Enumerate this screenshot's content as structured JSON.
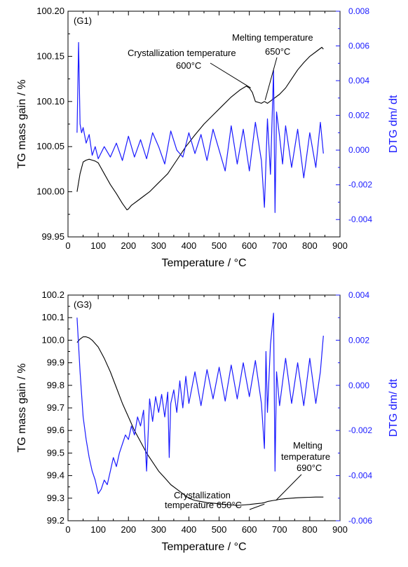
{
  "chart_data": [
    {
      "type": "line",
      "panel_label": "(G1)",
      "xlabel": "Temperature / °C",
      "ylabel_left": "TG mass gain / %",
      "ylabel_right": "DTG dm/ dt",
      "xlim": [
        0,
        900
      ],
      "ylim_left": [
        99.95,
        100.2
      ],
      "ylim_right": [
        -0.005,
        0.008
      ],
      "x_ticks": [
        0,
        100,
        200,
        300,
        400,
        500,
        600,
        700,
        800,
        900
      ],
      "y_left_ticks": [
        99.95,
        100.0,
        100.05,
        100.1,
        100.15,
        100.2
      ],
      "y_left_tick_labels": [
        "99.95",
        "100.00",
        "100.05",
        "100.10",
        "100.15",
        "100.20"
      ],
      "y_right_ticks": [
        -0.004,
        -0.002,
        0.0,
        0.002,
        0.004,
        0.006,
        0.008
      ],
      "y_right_tick_labels": [
        "-0.004",
        "-0.002",
        "0.000",
        "0.002",
        "0.004",
        "0.006",
        "0.008"
      ],
      "colors": {
        "tg": "#000000",
        "dtg": "#1a1aff"
      },
      "annotations": [
        {
          "text_lines": [
            "Crystallization temperature",
            "600°C"
          ],
          "x": 600,
          "y": 100.115
        },
        {
          "text_lines": [
            "Melting temperature",
            "650°C"
          ],
          "x": 650,
          "y": 100.1
        }
      ],
      "series": [
        {
          "name": "TG",
          "axis": "left",
          "x": [
            30,
            40,
            50,
            60,
            70,
            80,
            90,
            100,
            120,
            140,
            160,
            180,
            195,
            200,
            210,
            230,
            250,
            270,
            300,
            330,
            360,
            390,
            420,
            450,
            480,
            510,
            540,
            570,
            590,
            600,
            610,
            620,
            640,
            650,
            660,
            680,
            700,
            720,
            740,
            760,
            780,
            800,
            820,
            840,
            845
          ],
          "y": [
            100.0,
            100.02,
            100.033,
            100.035,
            100.036,
            100.035,
            100.034,
            100.032,
            100.02,
            100.008,
            99.998,
            99.987,
            99.98,
            99.981,
            99.985,
            99.99,
            99.995,
            100.0,
            100.01,
            100.02,
            100.035,
            100.05,
            100.063,
            100.075,
            100.085,
            100.095,
            100.105,
            100.113,
            100.117,
            100.115,
            100.11,
            100.1,
            100.098,
            100.1,
            100.098,
            100.103,
            100.108,
            100.115,
            100.125,
            100.135,
            100.143,
            100.15,
            100.155,
            100.16,
            100.158
          ]
        },
        {
          "name": "DTG",
          "axis": "right",
          "x": [
            30,
            35,
            40,
            45,
            50,
            60,
            70,
            80,
            90,
            100,
            120,
            140,
            160,
            180,
            200,
            220,
            240,
            260,
            280,
            300,
            320,
            340,
            360,
            380,
            400,
            420,
            440,
            460,
            480,
            500,
            520,
            540,
            560,
            580,
            600,
            620,
            640,
            650,
            660,
            670,
            680,
            685,
            690,
            700,
            710,
            720,
            740,
            760,
            780,
            800,
            820,
            835,
            845
          ],
          "y": [
            0.001,
            0.0062,
            0.0015,
            0.001,
            0.0013,
            0.0004,
            0.0009,
            -0.0003,
            0.0002,
            -0.0005,
            0.0002,
            -0.0004,
            0.0004,
            -0.0006,
            0.0008,
            -0.0004,
            0.0006,
            -0.0005,
            0.001,
            0.0002,
            -0.0008,
            0.0011,
            0.0,
            -0.0004,
            0.001,
            -0.0002,
            0.0009,
            -0.0006,
            0.0012,
            0.0,
            -0.0012,
            0.0014,
            -0.0008,
            0.0012,
            -0.0012,
            0.0016,
            -0.0006,
            -0.0033,
            0.0018,
            -0.0014,
            0.0046,
            -0.0036,
            0.0022,
            0.0008,
            -0.0008,
            0.0014,
            -0.001,
            0.0012,
            -0.0016,
            0.001,
            -0.001,
            0.0016,
            -0.0002
          ]
        }
      ]
    },
    {
      "type": "line",
      "panel_label": "(G3)",
      "xlabel": "Temperature / °C",
      "ylabel_left": "TG mass gain / %",
      "ylabel_right": "DTG dm/ dt",
      "xlim": [
        0,
        900
      ],
      "ylim_left": [
        99.2,
        100.2
      ],
      "ylim_right": [
        -0.006,
        0.004
      ],
      "x_ticks": [
        0,
        100,
        200,
        300,
        400,
        500,
        600,
        700,
        800,
        900
      ],
      "y_left_ticks": [
        99.2,
        99.3,
        99.4,
        99.5,
        99.6,
        99.7,
        99.8,
        99.9,
        100.0,
        100.1,
        100.2
      ],
      "y_left_tick_labels": [
        "99.2",
        "99.3",
        "99.4",
        "99.5",
        "99.6",
        "99.7",
        "99.8",
        "99.9",
        "100.0",
        "100.1",
        "100.2"
      ],
      "y_right_ticks": [
        -0.006,
        -0.004,
        -0.002,
        0.0,
        0.002,
        0.004
      ],
      "y_right_tick_labels": [
        "-0.006",
        "-0.004",
        "-0.002",
        "0.000",
        "0.002",
        "0.004"
      ],
      "colors": {
        "tg": "#000000",
        "dtg": "#1a1aff"
      },
      "annotations": [
        {
          "text_lines": [
            "Crystallization",
            "temperature 650°C"
          ],
          "x": 650,
          "y": 99.28
        },
        {
          "text_lines": [
            "Melting",
            "temperature",
            "690°C"
          ],
          "x": 690,
          "y": 99.29
        }
      ],
      "series": [
        {
          "name": "TG",
          "axis": "left",
          "x": [
            30,
            40,
            50,
            60,
            70,
            80,
            100,
            120,
            140,
            160,
            180,
            200,
            220,
            240,
            260,
            280,
            300,
            320,
            340,
            360,
            380,
            400,
            420,
            440,
            460,
            480,
            500,
            520,
            540,
            560,
            580,
            600,
            620,
            640,
            650,
            660,
            680,
            690,
            700,
            720,
            740,
            760,
            780,
            800,
            820,
            845
          ],
          "y": [
            99.99,
            100.005,
            100.015,
            100.015,
            100.01,
            100.0,
            99.97,
            99.92,
            99.86,
            99.79,
            99.72,
            99.66,
            99.6,
            99.55,
            99.5,
            99.46,
            99.42,
            99.39,
            99.36,
            99.34,
            99.32,
            99.3,
            99.29,
            99.285,
            99.28,
            99.278,
            99.275,
            99.273,
            99.27,
            99.268,
            99.27,
            99.272,
            99.275,
            99.278,
            99.28,
            99.285,
            99.29,
            99.292,
            99.295,
            99.298,
            99.3,
            99.302,
            99.303,
            99.304,
            99.305,
            99.305
          ]
        },
        {
          "name": "DTG",
          "axis": "right",
          "x": [
            30,
            40,
            50,
            60,
            70,
            80,
            90,
            100,
            110,
            120,
            130,
            140,
            150,
            160,
            170,
            180,
            190,
            200,
            210,
            220,
            230,
            240,
            250,
            260,
            270,
            280,
            290,
            300,
            310,
            320,
            330,
            335,
            340,
            350,
            360,
            370,
            380,
            390,
            400,
            420,
            440,
            460,
            480,
            500,
            520,
            540,
            560,
            580,
            600,
            620,
            640,
            650,
            655,
            660,
            670,
            680,
            685,
            690,
            700,
            720,
            740,
            760,
            780,
            800,
            820,
            835,
            845
          ],
          "y": [
            0.003,
            0.0006,
            -0.0014,
            -0.0024,
            -0.0032,
            -0.0038,
            -0.0042,
            -0.0048,
            -0.0046,
            -0.0042,
            -0.0044,
            -0.0038,
            -0.0032,
            -0.0036,
            -0.003,
            -0.0026,
            -0.0022,
            -0.0024,
            -0.0018,
            -0.0022,
            -0.0014,
            -0.0018,
            -0.0011,
            -0.0038,
            -0.0006,
            -0.0016,
            -0.0005,
            -0.0012,
            -0.0004,
            -0.0014,
            -0.0003,
            -0.0032,
            -0.0008,
            -0.0002,
            -0.0012,
            0.0002,
            -0.001,
            0.0004,
            -0.0008,
            0.0006,
            -0.0009,
            0.0007,
            -0.0006,
            0.0008,
            -0.0007,
            0.0009,
            -0.0006,
            0.001,
            -0.0005,
            0.0011,
            -0.0008,
            -0.0028,
            0.0015,
            -0.0012,
            0.0018,
            0.0032,
            -0.0038,
            0.0006,
            -0.0009,
            0.0012,
            -0.0008,
            0.001,
            -0.0009,
            0.0012,
            -0.0008,
            0.0006,
            0.0022
          ]
        }
      ]
    }
  ]
}
